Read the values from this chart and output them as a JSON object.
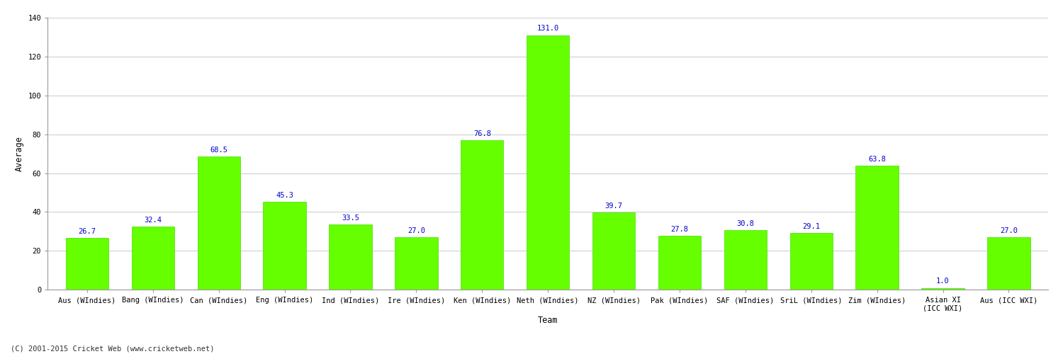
{
  "categories": [
    "Aus (WIndies)",
    "Bang (WIndies)",
    "Can (WIndies)",
    "Eng (WIndies)",
    "Ind (WIndies)",
    "Ire (WIndies)",
    "Ken (WIndies)",
    "Neth (WIndies)",
    "NZ (WIndies)",
    "Pak (WIndies)",
    "SAF (WIndies)",
    "SriL (WIndies)",
    "Zim (WIndies)",
    "Asian XI\n(ICC WXI)",
    "Aus (ICC WXI)"
  ],
  "values": [
    26.7,
    32.4,
    68.5,
    45.3,
    33.5,
    27.0,
    76.8,
    131.0,
    39.7,
    27.8,
    30.8,
    29.1,
    63.8,
    1.0,
    27.0
  ],
  "bar_color": "#66ff00",
  "bar_edge_color": "#44dd00",
  "label_color": "#0000cc",
  "ylabel": "Average",
  "xlabel": "Team",
  "ylim": [
    0,
    140
  ],
  "yticks": [
    0,
    20,
    40,
    60,
    80,
    100,
    120,
    140
  ],
  "grid_color": "#d0d0d0",
  "background_color": "#ffffff",
  "footer": "(C) 2001-2015 Cricket Web (www.cricketweb.net)",
  "label_fontsize": 7.5,
  "tick_fontsize": 7.5,
  "ylabel_fontsize": 8.5,
  "xlabel_fontsize": 8.5,
  "bar_width": 0.65
}
